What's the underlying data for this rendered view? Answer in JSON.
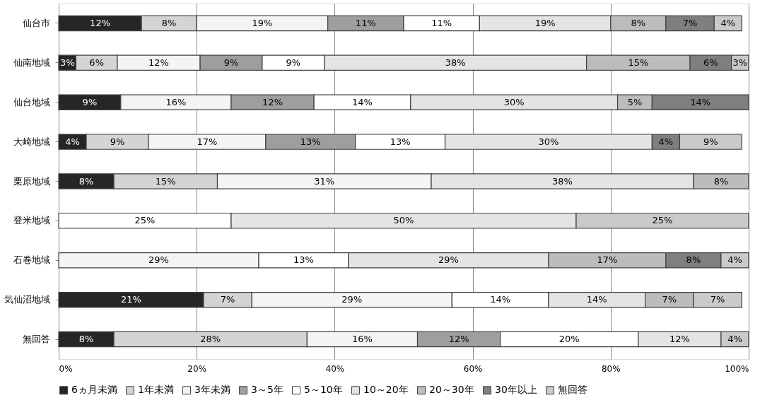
{
  "chart_data": {
    "type": "bar",
    "orientation": "horizontal",
    "stacked": true,
    "grid": "x",
    "legend": "bottom",
    "categories": [
      "仙台市",
      "仙南地域",
      "仙台地域",
      "大崎地域",
      "栗原地域",
      "登米地域",
      "石巻地域",
      "気仙沼地域",
      "無回答"
    ],
    "xlim": [
      0,
      100
    ],
    "xticks": [
      {
        "value": 0,
        "label": "0%"
      },
      {
        "value": 20,
        "label": "20%"
      },
      {
        "value": 40,
        "label": "40%"
      },
      {
        "value": 60,
        "label": "60%"
      },
      {
        "value": 80,
        "label": "80%"
      },
      {
        "value": 100,
        "label": "100%"
      }
    ],
    "series": [
      {
        "name": "6ヵ月未満",
        "color": "#262626",
        "values": [
          12,
          2.5,
          9,
          4,
          8,
          null,
          null,
          21,
          8
        ],
        "value_labels": [
          "12%",
          "3%",
          "9%",
          "4%",
          "8%",
          null,
          null,
          "21%",
          "8%"
        ]
      },
      {
        "name": "1年未満",
        "color": "#d4d4d4",
        "values": [
          8,
          6,
          null,
          9,
          15,
          null,
          null,
          7,
          28
        ],
        "value_labels": [
          "8%",
          "6%",
          null,
          "9%",
          "15%",
          null,
          null,
          "7%",
          "28%"
        ]
      },
      {
        "name": "3年未満",
        "color": "#f4f4f4",
        "values": [
          19,
          12,
          16,
          17,
          31,
          null,
          29,
          29,
          16
        ],
        "value_labels": [
          "19%",
          "12%",
          "16%",
          "17%",
          "31%",
          null,
          "29%",
          "29%",
          "16%"
        ]
      },
      {
        "name": "3～5年",
        "color": "#9e9e9e",
        "values": [
          11,
          9,
          12,
          13,
          null,
          null,
          null,
          null,
          12
        ],
        "value_labels": [
          "11%",
          "9%",
          "12%",
          "13%",
          null,
          null,
          null,
          null,
          "12%"
        ]
      },
      {
        "name": "5～10年",
        "color": "#ffffff",
        "values": [
          11,
          9,
          14,
          13,
          null,
          25,
          13,
          14,
          20
        ],
        "value_labels": [
          "11%",
          "9%",
          "14%",
          "13%",
          null,
          "25%",
          "13%",
          "14%",
          "20%"
        ]
      },
      {
        "name": "10～20年",
        "color": "#e4e4e4",
        "values": [
          19,
          38,
          30,
          30,
          38,
          50,
          29,
          14,
          12
        ],
        "value_labels": [
          "19%",
          "38%",
          "30%",
          "30%",
          "38%",
          "50%",
          "29%",
          "14%",
          "12%"
        ]
      },
      {
        "name": "20～30年",
        "color": "#bcbcbc",
        "values": [
          8,
          15,
          5,
          null,
          8,
          null,
          17,
          7,
          null
        ],
        "value_labels": [
          "8%",
          "15%",
          "5%",
          null,
          "8%",
          null,
          "17%",
          "7%",
          null
        ]
      },
      {
        "name": "30年以上",
        "color": "#7f7f7f",
        "values": [
          7,
          6,
          14,
          4,
          null,
          null,
          8,
          null,
          null
        ],
        "value_labels": [
          "7%",
          "6%",
          "14%",
          "4%",
          null,
          null,
          "8%",
          null,
          null
        ]
      },
      {
        "name": "無回答",
        "color": "#cacaca",
        "values": [
          4,
          2.5,
          null,
          9,
          null,
          25,
          4,
          7,
          4
        ],
        "value_labels": [
          "4%",
          "3%",
          null,
          "9%",
          null,
          "25%",
          "4%",
          "7%",
          "4%"
        ]
      }
    ]
  }
}
